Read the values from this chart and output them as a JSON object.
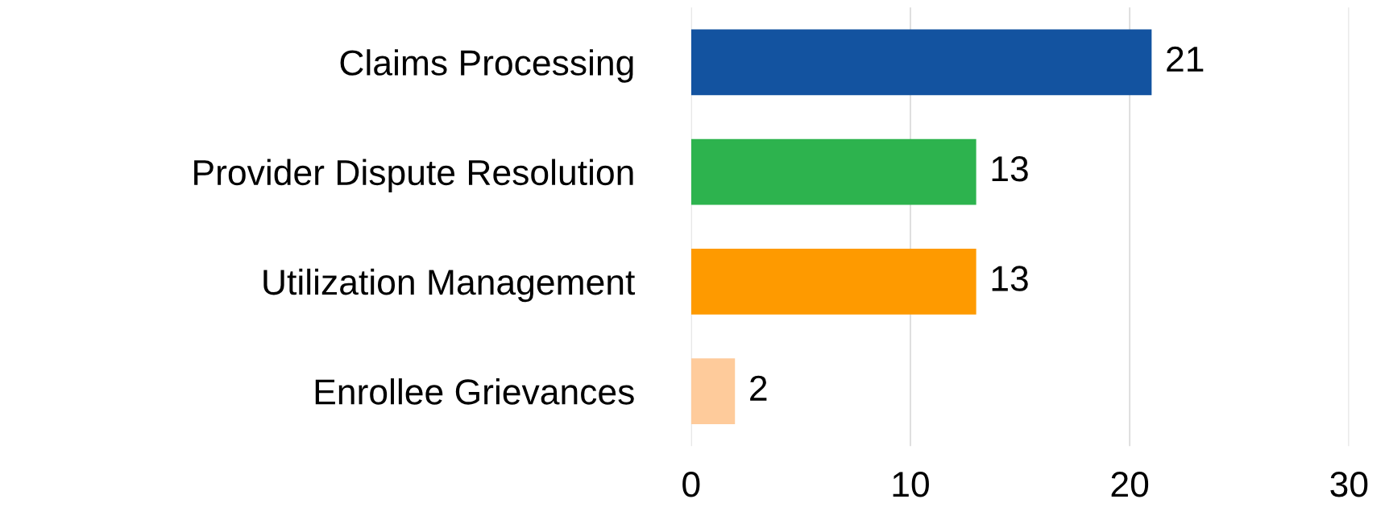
{
  "chart_data": {
    "type": "bar",
    "orientation": "horizontal",
    "categories": [
      "Claims Processing",
      "Provider Dispute Resolution",
      "Utilization Management",
      "Enrollee Grievances"
    ],
    "values": [
      21,
      13,
      13,
      2
    ],
    "colors": [
      "#1353a0",
      "#2db34e",
      "#fe9a00",
      "#fecb9b"
    ],
    "xlim": [
      0,
      30
    ],
    "xticks": [
      0,
      10,
      20,
      30
    ],
    "grid": "x",
    "data_labels": true
  }
}
